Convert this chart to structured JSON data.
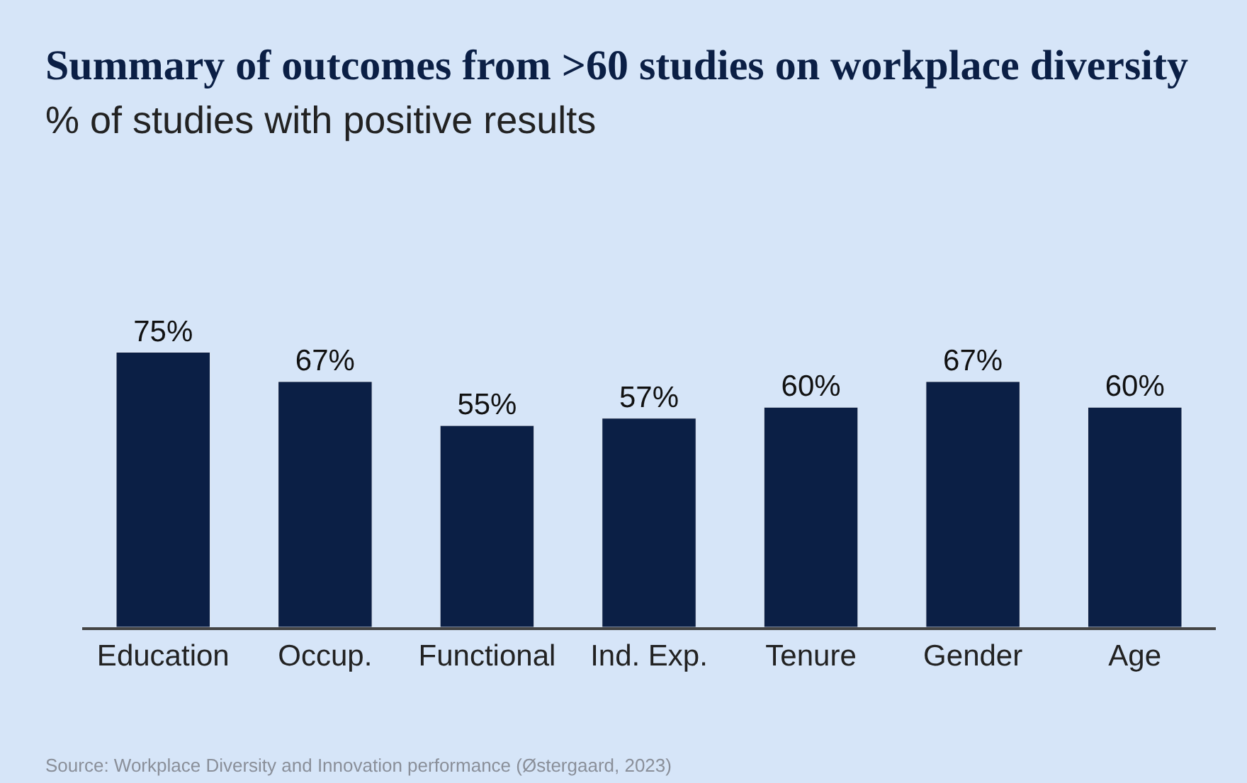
{
  "chart_data": {
    "type": "bar",
    "title": "Summary of outcomes from >60 studies on workplace diversity",
    "subtitle": "% of studies with positive results",
    "categories": [
      "Education",
      "Occup.",
      "Functional",
      "Ind. Exp.",
      "Tenure",
      "Gender",
      "Age"
    ],
    "values": [
      75,
      67,
      55,
      57,
      60,
      67,
      60
    ],
    "value_labels": [
      "75%",
      "67%",
      "55%",
      "57%",
      "60%",
      "67%",
      "60%"
    ],
    "color": "#0b1f45",
    "tick_labels": "x",
    "grid": false,
    "annotations": [
      "Source: Workplace Diversity and Innovation performance (Østergaard, 2023)"
    ]
  }
}
